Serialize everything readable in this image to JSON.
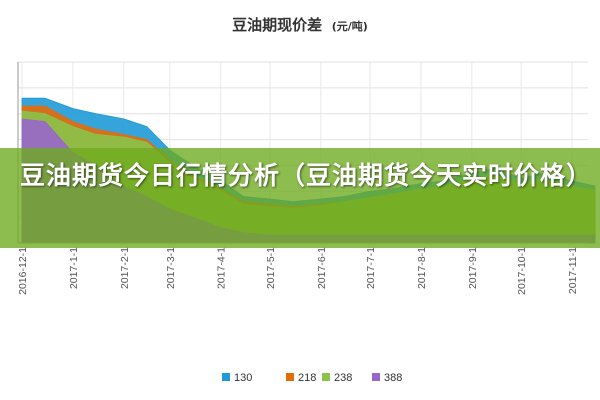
{
  "chart_data": {
    "type": "area",
    "title": "豆油期现价差",
    "title_unit": "(元/吨)",
    "x_tick_labels": [
      "2016-12-1",
      "2017-1-1",
      "2017-2-1",
      "2017-3-1",
      "2017-4-1",
      "2017-5-1",
      "2017-6-1",
      "2017-7-1",
      "2017-8-1",
      "2017-9-1",
      "2017-10-1",
      "2017-11-1"
    ],
    "ylim": [
      0,
      700
    ],
    "grid": true,
    "legend_position": "bottom",
    "x": [
      "2016-12-01",
      "2016-12-15",
      "2017-01-01",
      "2017-01-15",
      "2017-02-01",
      "2017-02-15",
      "2017-03-01",
      "2017-03-15",
      "2017-04-01",
      "2017-04-15",
      "2017-05-01",
      "2017-05-15",
      "2017-06-01",
      "2017-06-15",
      "2017-07-01",
      "2017-07-15",
      "2017-08-01",
      "2017-08-15",
      "2017-09-01",
      "2017-09-15",
      "2017-10-01",
      "2017-10-15",
      "2017-11-01",
      "2017-11-15"
    ],
    "series": [
      {
        "name": "130",
        "color": "#1f9ad6",
        "values": [
          560,
          560,
          520,
          500,
          480,
          450,
          360,
          300,
          240,
          180,
          170,
          160,
          170,
          180,
          200,
          210,
          230,
          240,
          270,
          290,
          250,
          270,
          240,
          220
        ]
      },
      {
        "name": "218",
        "color": "#e46c0a",
        "values": [
          530,
          530,
          470,
          440,
          420,
          400,
          320,
          260,
          210,
          160,
          150,
          140,
          150,
          160,
          170,
          190,
          200,
          215,
          240,
          255,
          220,
          240,
          210,
          200
        ]
      },
      {
        "name": "238",
        "color": "#8bc34a",
        "values": [
          510,
          500,
          450,
          420,
          410,
          390,
          310,
          250,
          200,
          150,
          140,
          135,
          145,
          160,
          175,
          190,
          210,
          220,
          250,
          265,
          230,
          250,
          220,
          205
        ]
      },
      {
        "name": "388",
        "color": "#9966cc",
        "values": [
          480,
          470,
          350,
          300,
          220,
          180,
          130,
          100,
          60,
          40,
          30,
          30,
          30,
          30,
          30,
          30,
          30,
          30,
          30,
          30,
          30,
          30,
          30,
          30
        ]
      }
    ]
  },
  "overlay": {
    "headline": "豆油期货今日行情分析（豆油期货今天实时价格）",
    "band_color": "#6eaa1e"
  }
}
